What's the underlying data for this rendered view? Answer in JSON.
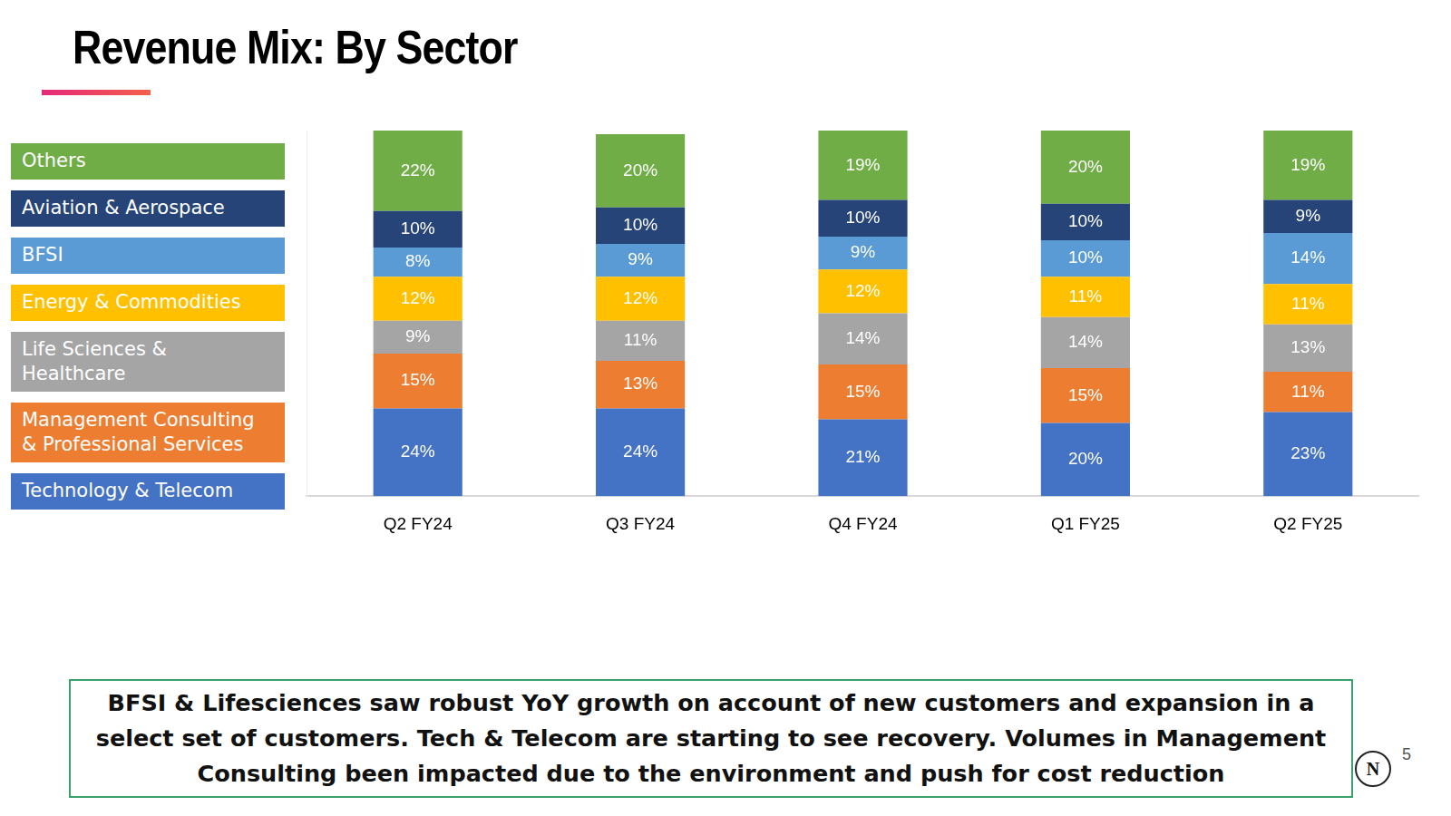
{
  "title": "Revenue Mix: By Sector",
  "annotation": "BFSI & Lifesciences saw robust YoY growth on account of new customers and expansion in a select set of customers. Tech & Telecom are starting to see recovery. Volumes in Management Consulting been impacted due to the environment and push for cost reduction",
  "page_number": "5",
  "logo": "N",
  "chart_data": {
    "type": "bar",
    "stacked": true,
    "data_labels": true,
    "grid": false,
    "legend": "left",
    "tick_labels": "x",
    "categories": [
      "Q2 FY24",
      "Q3 FY24",
      "Q4 FY24",
      "Q1 FY25",
      "Q2 FY25"
    ],
    "ylim": [
      0,
      100
    ],
    "series": [
      {
        "name": "Technology & Telecom",
        "color": "#4472c4",
        "values": [
          24,
          24,
          21,
          20,
          23
        ],
        "value_labels": [
          "24%",
          "24%",
          "21%",
          "20%",
          "23%"
        ]
      },
      {
        "name": "Management Consulting & Professional Services",
        "color": "#ed7d31",
        "values": [
          15,
          13,
          15,
          15,
          11
        ],
        "value_labels": [
          "15%",
          "13%",
          "15%",
          "15%",
          "11%"
        ]
      },
      {
        "name": "Life Sciences & Healthcare",
        "color": "#a5a5a5",
        "values": [
          9,
          11,
          14,
          14,
          13
        ],
        "value_labels": [
          "9%",
          "11%",
          "14%",
          "14%",
          "13%"
        ]
      },
      {
        "name": "Energy & Commodities",
        "color": "#ffc000",
        "values": [
          12,
          12,
          12,
          11,
          11
        ],
        "value_labels": [
          "12%",
          "12%",
          "12%",
          "11%",
          "11%"
        ]
      },
      {
        "name": "BFSI",
        "color": "#5b9bd5",
        "values": [
          8,
          9,
          9,
          10,
          14
        ],
        "value_labels": [
          "8%",
          "9%",
          "9%",
          "10%",
          "14%"
        ]
      },
      {
        "name": "Aviation & Aerospace",
        "color": "#264478",
        "values": [
          10,
          10,
          10,
          10,
          9
        ],
        "value_labels": [
          "10%",
          "10%",
          "10%",
          "10%",
          "9%"
        ]
      },
      {
        "name": "Others",
        "color": "#70ad47",
        "values": [
          22,
          20,
          19,
          20,
          19
        ],
        "value_labels": [
          "22%",
          "20%",
          "19%",
          "20%",
          "19%"
        ]
      }
    ]
  }
}
